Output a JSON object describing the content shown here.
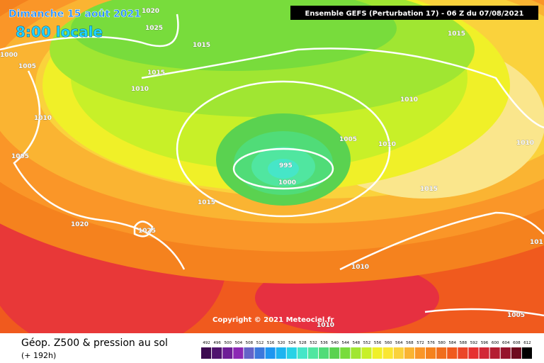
{
  "header": {
    "date": "Dimanche 15 août 2021",
    "time": "8:00 locale",
    "run": "Ensemble GEFS  (Perturbation 17)  -  06 Z du 07/08/2021"
  },
  "isobars": [
    "1020",
    "1025",
    "1015",
    "1000",
    "1005",
    "1015",
    "1010",
    "1015",
    "1010",
    "1005",
    "1010",
    "1005",
    "1010",
    "995",
    "1000",
    "1015",
    "1015",
    "1020",
    "1025",
    "1010",
    "1010",
    "1005",
    "1010",
    "101"
  ],
  "copyright": "Copyright © 2021 Meteociel.fr",
  "footer": {
    "title": "Géop. Z500 & pression au sol",
    "lead": "(+ 192h)"
  },
  "colorbar": {
    "ticks": [
      492,
      496,
      500,
      504,
      508,
      512,
      516,
      520,
      524,
      528,
      532,
      536,
      540,
      544,
      548,
      552,
      556,
      560,
      564,
      568,
      572,
      576,
      580,
      584,
      588,
      592,
      596,
      600,
      604,
      608,
      612
    ],
    "colors": [
      "#3c0a50",
      "#50146e",
      "#6e1e96",
      "#8c28b4",
      "#6464c8",
      "#3c78dc",
      "#1e96f0",
      "#1eb4f0",
      "#28d2e6",
      "#46e6c8",
      "#50e6a0",
      "#50dc78",
      "#5ad250",
      "#78dc3c",
      "#a0e632",
      "#c8f028",
      "#f0f028",
      "#fae632",
      "#fad23c",
      "#fab432",
      "#fa9628",
      "#f5821e",
      "#f06e1e",
      "#f05a1e",
      "#eb4628",
      "#e63232",
      "#d22837",
      "#b41e32",
      "#96142d",
      "#6e0a1e",
      "#000000"
    ]
  }
}
